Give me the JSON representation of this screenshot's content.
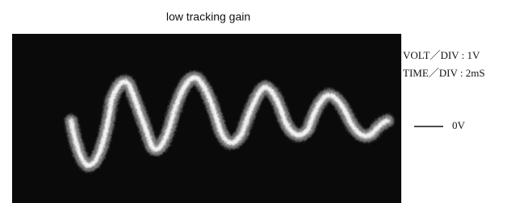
{
  "figure": {
    "title": "low tracking gain",
    "volt_div": "VOLT／DIV : 1V",
    "time_div": "TIME／DIV : 2mS",
    "zero_label": "0V"
  }
}
